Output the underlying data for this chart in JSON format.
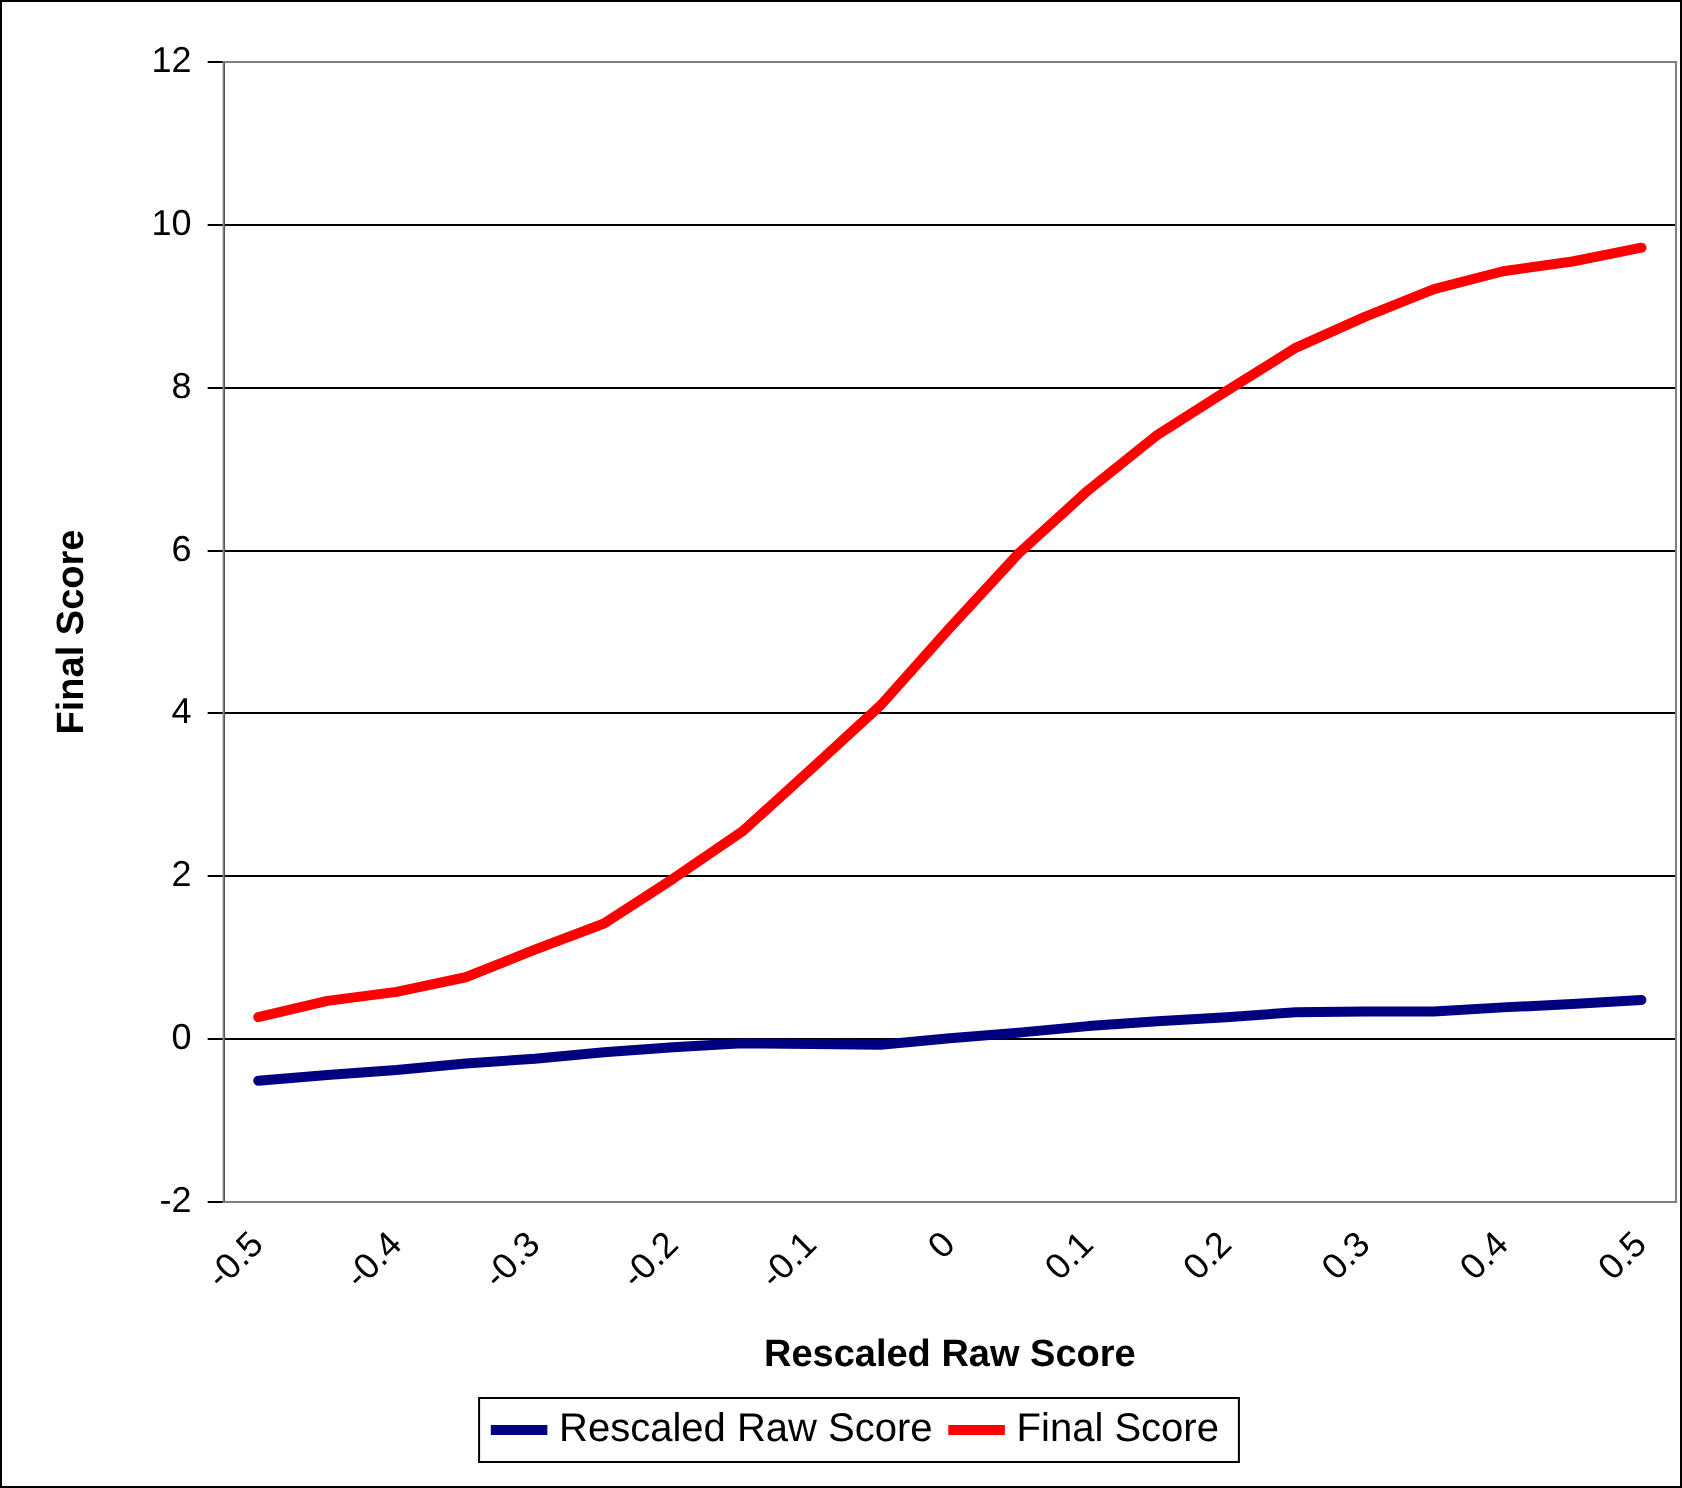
{
  "chart_data": {
    "type": "line",
    "xlabel": "Rescaled Raw Score",
    "ylabel": "Final Score",
    "categories": [
      "-0.5",
      null,
      "-0.4",
      null,
      "-0.3",
      null,
      "-0.2",
      null,
      "-0.1",
      null,
      "0",
      null,
      "0.1",
      null,
      "0.2",
      null,
      "0.3",
      null,
      "0.4",
      null,
      "0.5"
    ],
    "series": [
      {
        "name": "Rescaled Raw Score",
        "color": "#000080",
        "values": [
          -0.51,
          -0.44,
          -0.38,
          -0.3,
          -0.24,
          -0.16,
          -0.1,
          -0.05,
          -0.06,
          -0.07,
          0.01,
          0.08,
          0.16,
          0.22,
          0.27,
          0.33,
          0.34,
          0.34,
          0.39,
          0.43,
          0.48
        ]
      },
      {
        "name": "Final Score",
        "color": "#ff0000",
        "values": [
          0.27,
          0.47,
          0.58,
          0.76,
          1.1,
          1.42,
          1.97,
          2.55,
          3.32,
          4.1,
          5.05,
          5.97,
          6.74,
          7.42,
          7.96,
          8.49,
          8.87,
          9.21,
          9.43,
          9.55,
          9.72
        ]
      }
    ],
    "ylim": [
      -2,
      12
    ],
    "yticks": [
      -2,
      0,
      2,
      4,
      6,
      8,
      10,
      12
    ],
    "grid": "y",
    "legend": "bottom",
    "marker": "none",
    "line_style": "solid"
  }
}
